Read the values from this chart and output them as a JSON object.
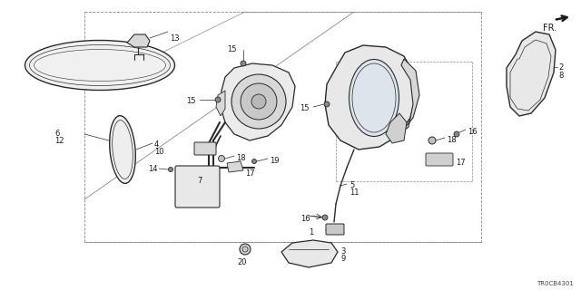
{
  "background_color": "#ffffff",
  "diagram_id": "TR0CB4301",
  "fig_width": 6.4,
  "fig_height": 3.2,
  "dpi": 100,
  "lc": "#2a2a2a",
  "lw": 0.8,
  "fs": 6.0
}
